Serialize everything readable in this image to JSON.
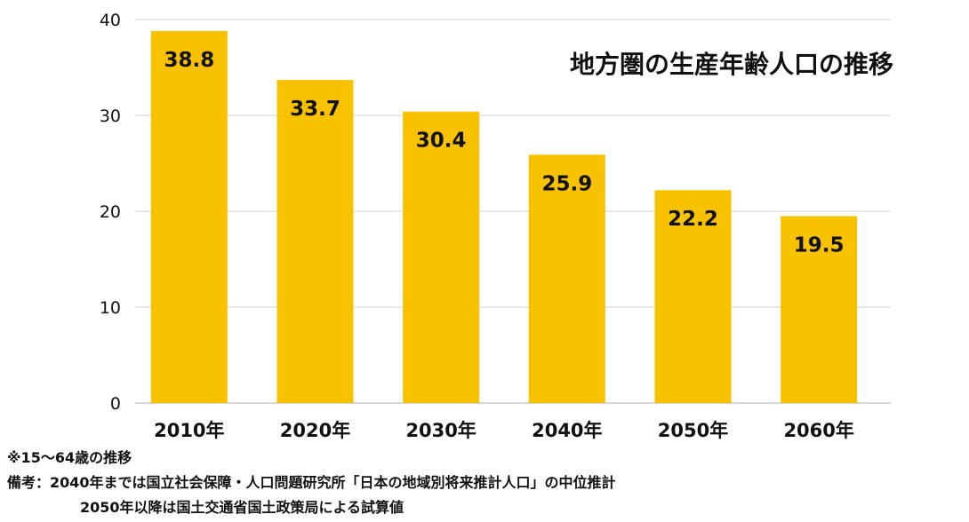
{
  "chart_data": {
    "type": "bar",
    "title": "地方圏の生産年齢人口の推移",
    "categories": [
      "2010年",
      "2020年",
      "2030年",
      "2040年",
      "2050年",
      "2060年"
    ],
    "values": [
      38.8,
      33.7,
      30.4,
      25.9,
      22.2,
      19.5
    ],
    "data_labels": [
      "38.8",
      "33.7",
      "30.4",
      "25.9",
      "22.2",
      "19.5"
    ],
    "yticks": [
      "0",
      "10",
      "20",
      "30",
      "40"
    ],
    "ylim": [
      0,
      40
    ],
    "grid": true,
    "bar_color": "#F8C200",
    "grid_color": "#d9d9d9",
    "text_color": "#111111"
  },
  "notes": {
    "range_note": "※15～64歳の推移",
    "remarks_line1": "備考：2040年までは国立社会保障・人口問題研究所「日本の地域別将来推計人口」の中位推計",
    "remarks_line2": "2050年以降は国土交通省国土政策局による試算値"
  }
}
